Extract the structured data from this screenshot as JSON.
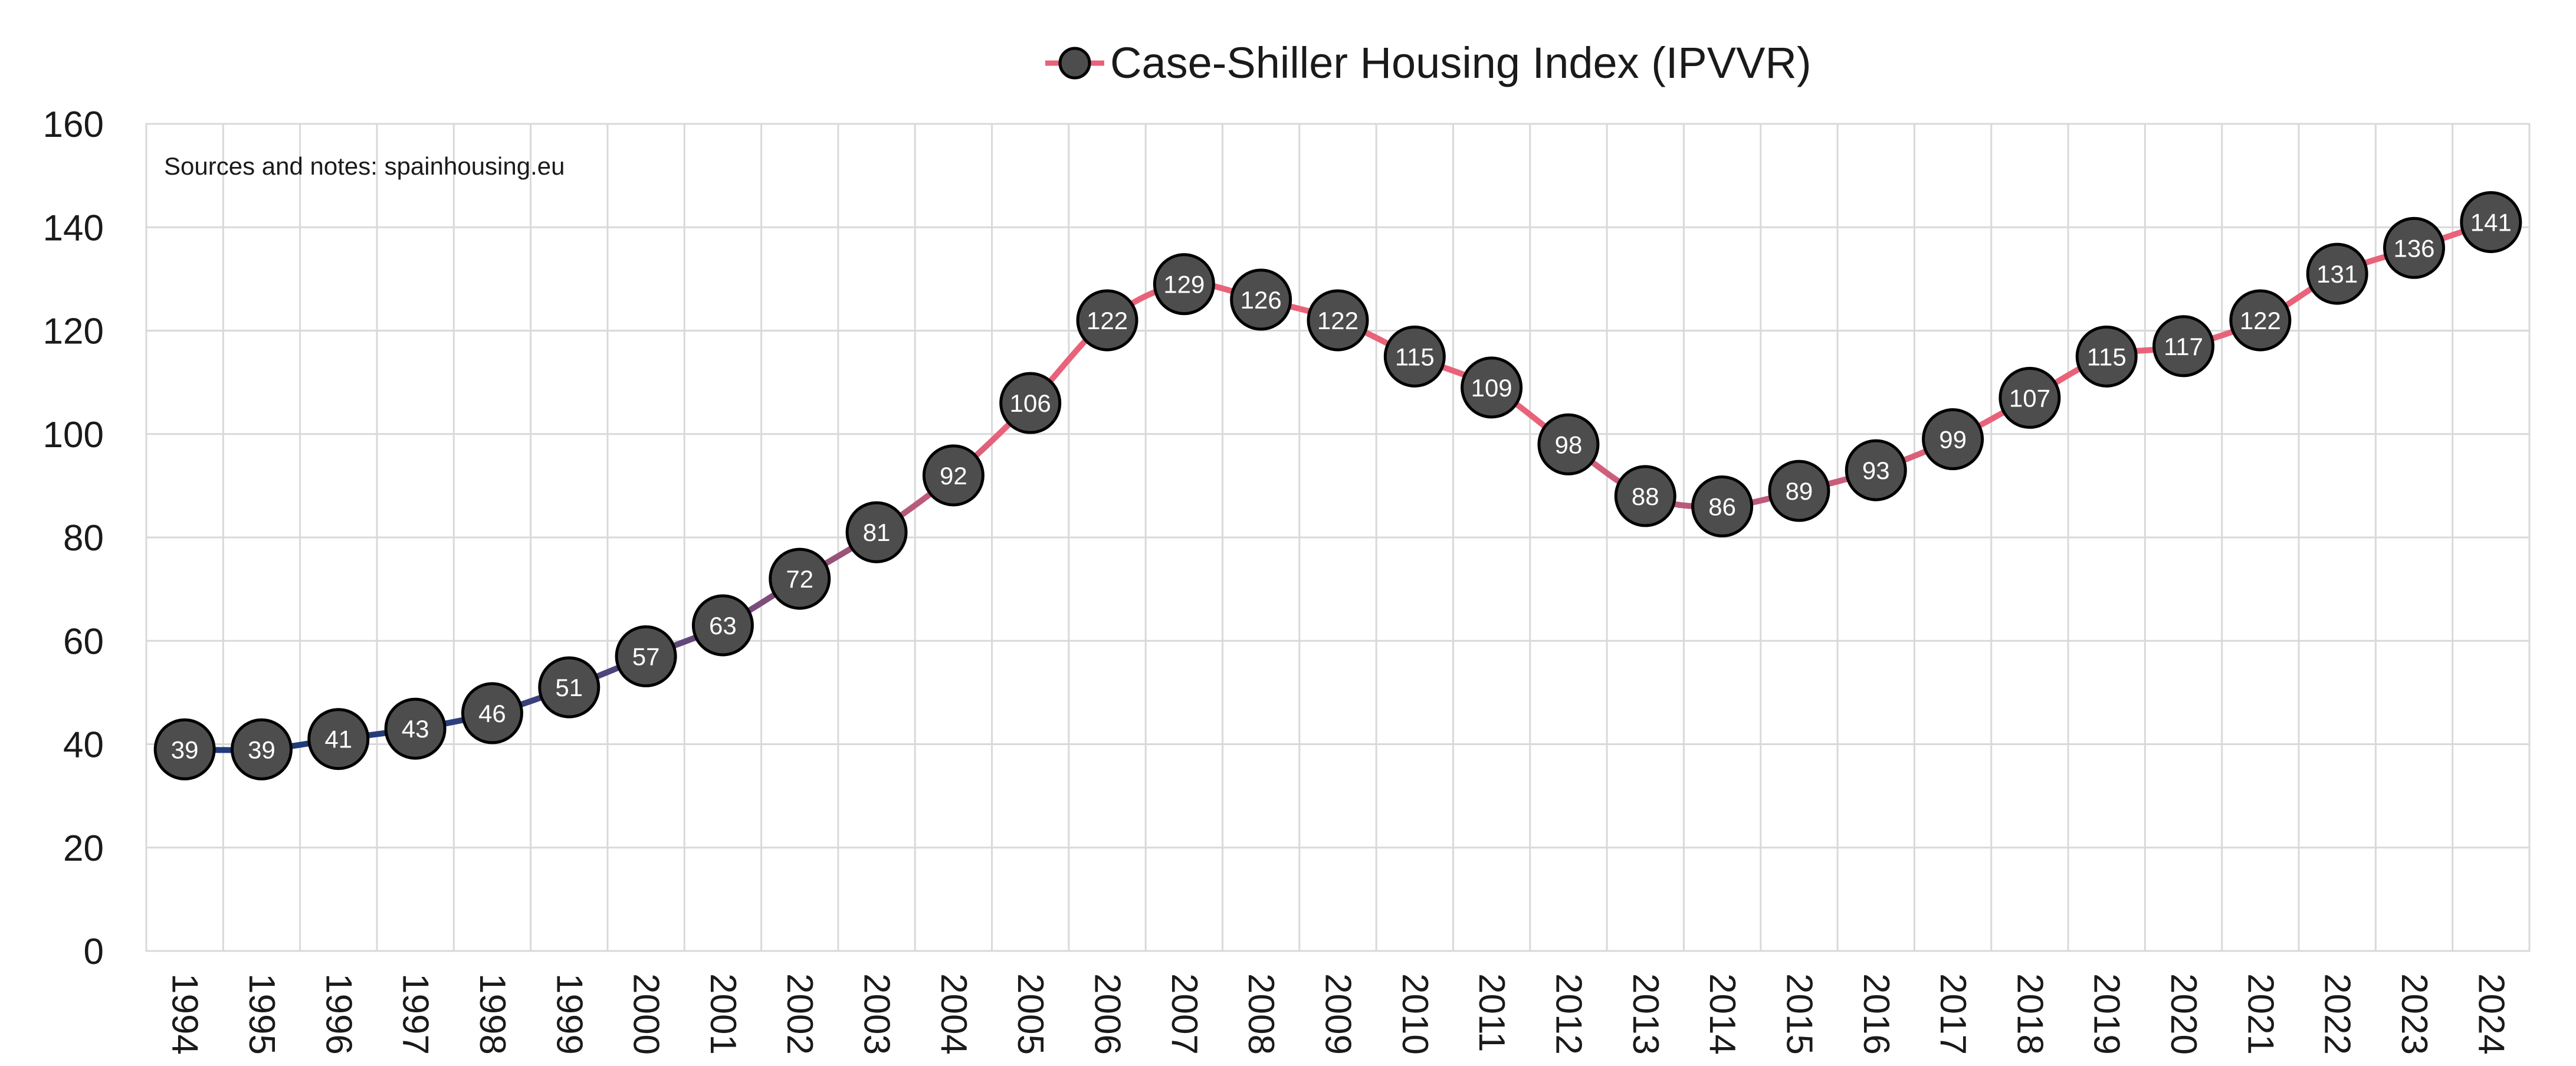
{
  "chart_data": {
    "type": "line",
    "title": "",
    "xlabel": "",
    "ylabel": "",
    "note": "Sources and notes: spainhousing.eu",
    "legend": {
      "position": "top-center"
    },
    "grid": true,
    "ylim": [
      0,
      160
    ],
    "yticks": [
      0,
      20,
      40,
      60,
      80,
      100,
      120,
      140,
      160
    ],
    "categories": [
      "1994",
      "1995",
      "1996",
      "1997",
      "1998",
      "1999",
      "2000",
      "2001",
      "2002",
      "2003",
      "2004",
      "2005",
      "2006",
      "2007",
      "2008",
      "2009",
      "2010",
      "2011",
      "2012",
      "2013",
      "2014",
      "2015",
      "2016",
      "2017",
      "2018",
      "2019",
      "2020",
      "2021",
      "2022",
      "2023",
      "2024"
    ],
    "series": [
      {
        "name": "Case-Shiller Housing Index (IPVVR)",
        "values": [
          39,
          39,
          41,
          43,
          46,
          51,
          57,
          63,
          72,
          81,
          92,
          106,
          122,
          129,
          126,
          122,
          115,
          109,
          98,
          88,
          86,
          89,
          93,
          99,
          107,
          115,
          117,
          122,
          131,
          136,
          141
        ],
        "marker_color": "#4d4d4d",
        "line_color_low": "#1f3b7a",
        "line_color_high": "#e8637a"
      }
    ]
  }
}
